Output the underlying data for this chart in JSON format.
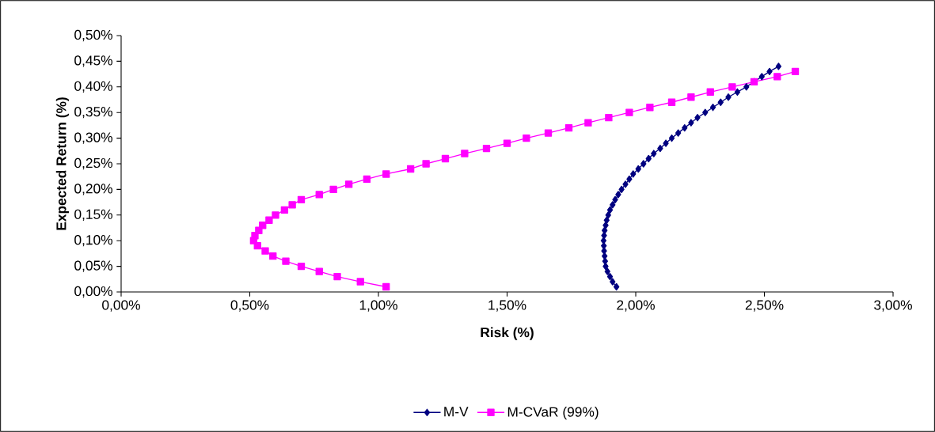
{
  "chart_data": {
    "type": "line",
    "xlabel": "Risk (%)",
    "ylabel": "Expected Return (%)",
    "xlim": [
      0,
      3
    ],
    "ylim": [
      0,
      0.5
    ],
    "xticks": [
      {
        "value": 0,
        "label": "0,00%"
      },
      {
        "value": 0.5,
        "label": "0,50%"
      },
      {
        "value": 1,
        "label": "1,00%"
      },
      {
        "value": 1.5,
        "label": "1,50%"
      },
      {
        "value": 2,
        "label": "2,00%"
      },
      {
        "value": 2.5,
        "label": "2,50%"
      },
      {
        "value": 3,
        "label": "3,00%"
      }
    ],
    "yticks": [
      {
        "value": 0,
        "label": "0,00%"
      },
      {
        "value": 0.05,
        "label": "0,05%"
      },
      {
        "value": 0.1,
        "label": "0,10%"
      },
      {
        "value": 0.15,
        "label": "0,15%"
      },
      {
        "value": 0.2,
        "label": "0,20%"
      },
      {
        "value": 0.25,
        "label": "0,25%"
      },
      {
        "value": 0.3,
        "label": "0,30%"
      },
      {
        "value": 0.35,
        "label": "0,35%"
      },
      {
        "value": 0.4,
        "label": "0,40%"
      },
      {
        "value": 0.45,
        "label": "0,45%"
      },
      {
        "value": 0.5,
        "label": "0,50%"
      }
    ],
    "grid": false,
    "legend": "bottom",
    "line_style": "solid",
    "series": [
      {
        "name": "M-V",
        "color": "#000080",
        "marker": "diamond",
        "x": [
          1.925,
          1.91,
          1.9,
          1.89,
          1.883,
          1.881,
          1.879,
          1.877,
          1.876,
          1.875,
          1.877,
          1.879,
          1.883,
          1.887,
          1.893,
          1.9,
          1.91,
          1.92,
          1.932,
          1.945,
          1.96,
          1.975,
          1.99,
          2.01,
          2.03,
          2.05,
          2.07,
          2.095,
          2.117,
          2.14,
          2.165,
          2.19,
          2.215,
          2.24,
          2.27,
          2.3,
          2.33,
          2.36,
          2.395,
          2.43,
          2.46,
          2.49,
          2.52,
          2.555
        ],
        "values": [
          0.01,
          0.02,
          0.03,
          0.04,
          0.05,
          0.06,
          0.07,
          0.08,
          0.09,
          0.1,
          0.11,
          0.12,
          0.13,
          0.14,
          0.15,
          0.16,
          0.17,
          0.18,
          0.19,
          0.2,
          0.21,
          0.22,
          0.23,
          0.24,
          0.25,
          0.26,
          0.27,
          0.28,
          0.29,
          0.3,
          0.31,
          0.32,
          0.33,
          0.34,
          0.35,
          0.36,
          0.37,
          0.38,
          0.39,
          0.4,
          0.41,
          0.42,
          0.43,
          0.44
        ]
      },
      {
        "name": "M-CVaR (99%)",
        "color": "#ff00ff",
        "marker": "square",
        "x": [
          1.03,
          0.93,
          0.84,
          0.77,
          0.7,
          0.64,
          0.59,
          0.56,
          0.53,
          0.515,
          0.52,
          0.535,
          0.55,
          0.575,
          0.6,
          0.635,
          0.665,
          0.7,
          0.77,
          0.825,
          0.885,
          0.955,
          1.03,
          1.125,
          1.185,
          1.26,
          1.335,
          1.42,
          1.5,
          1.575,
          1.66,
          1.74,
          1.815,
          1.895,
          1.975,
          2.055,
          2.14,
          2.215,
          2.29,
          2.375,
          2.46,
          2.55,
          2.62
        ],
        "values": [
          0.01,
          0.02,
          0.03,
          0.04,
          0.05,
          0.06,
          0.07,
          0.08,
          0.09,
          0.1,
          0.11,
          0.12,
          0.13,
          0.14,
          0.15,
          0.16,
          0.17,
          0.18,
          0.19,
          0.2,
          0.21,
          0.22,
          0.23,
          0.24,
          0.25,
          0.26,
          0.27,
          0.28,
          0.29,
          0.3,
          0.31,
          0.32,
          0.33,
          0.34,
          0.35,
          0.36,
          0.37,
          0.38,
          0.39,
          0.4,
          0.41,
          0.42,
          0.43
        ]
      }
    ]
  }
}
